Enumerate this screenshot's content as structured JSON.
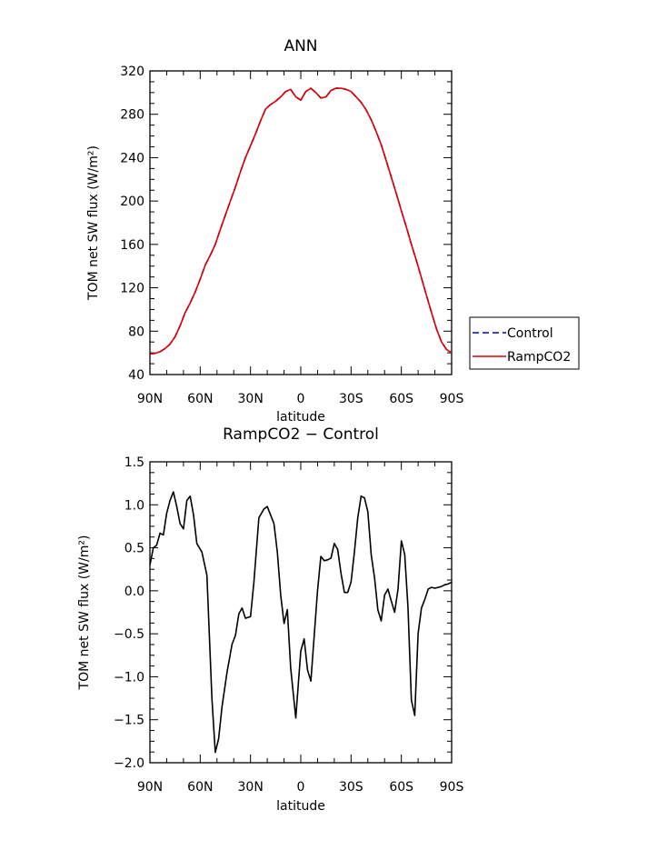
{
  "chart_data": [
    {
      "type": "line",
      "title": "ANN",
      "xlabel": "latitude",
      "ylabel": "TOM net SW flux (W/m²)",
      "x_tick_labels": [
        "90N",
        "60N",
        "30N",
        "0",
        "30S",
        "60S",
        "90S"
      ],
      "y_tick_labels": [
        "40",
        "80",
        "120",
        "160",
        "200",
        "240",
        "280",
        "320"
      ],
      "ylim": [
        40,
        320
      ],
      "x": [
        90,
        87,
        84,
        81,
        78,
        75,
        72,
        69,
        66,
        63,
        60,
        57,
        54,
        51,
        48,
        45,
        42,
        39,
        36,
        33,
        30,
        27,
        24,
        21,
        18,
        15,
        12,
        9,
        6,
        3,
        0,
        -3,
        -6,
        -9,
        -12,
        -15,
        -18,
        -21,
        -24,
        -27,
        -30,
        -33,
        -36,
        -39,
        -42,
        -45,
        -48,
        -51,
        -54,
        -57,
        -60,
        -63,
        -66,
        -69,
        -72,
        -75,
        -78,
        -81,
        -84,
        -87,
        -90
      ],
      "legend": {
        "placement": "right",
        "entries": [
          "Control",
          "RampCO2"
        ]
      },
      "series": [
        {
          "name": "Control",
          "color": "#0000cc",
          "style": "dashed",
          "values": [
            59,
            59.5,
            61,
            64,
            68,
            75,
            85,
            97,
            106,
            116,
            128,
            141,
            150,
            160,
            174,
            187,
            200,
            213,
            227,
            240,
            251,
            262,
            274,
            285,
            289,
            292,
            296,
            301,
            303,
            296,
            293,
            301,
            304,
            300,
            295,
            296,
            302,
            304,
            304,
            303,
            301,
            296,
            291,
            284,
            275,
            264,
            252,
            237,
            222,
            207,
            191,
            176,
            160,
            145,
            129,
            113,
            97,
            82,
            70,
            63,
            60
          ]
        },
        {
          "name": "RampCO2",
          "color": "#dd0000",
          "style": "solid",
          "values": [
            59,
            59.5,
            61,
            64,
            68,
            75,
            85,
            97,
            106,
            116,
            128,
            141,
            150,
            160,
            174,
            187,
            200,
            213,
            227,
            240,
            251,
            262,
            274,
            285,
            289,
            292,
            296,
            301,
            303,
            296,
            293,
            301,
            304,
            300,
            295,
            296,
            302,
            304,
            304,
            303,
            301,
            296,
            291,
            284,
            275,
            264,
            252,
            237,
            222,
            207,
            191,
            176,
            160,
            145,
            129,
            113,
            97,
            82,
            70,
            63,
            60
          ]
        }
      ]
    },
    {
      "type": "line",
      "title": "RampCO2 − Control",
      "xlabel": "latitude",
      "ylabel": "TOM net SW flux (W/m²)",
      "x_tick_labels": [
        "90N",
        "60N",
        "30N",
        "0",
        "30S",
        "60S",
        "90S"
      ],
      "y_tick_labels": [
        "−2.0",
        "−1.5",
        "−1.0",
        "−0.5",
        "0.0",
        "0.5",
        "1.0",
        "1.5"
      ],
      "ylim": [
        -2.0,
        1.5
      ],
      "x": [
        90,
        88,
        86,
        84,
        82,
        80,
        78,
        76,
        74,
        72,
        70,
        68,
        66,
        64,
        62,
        59,
        56,
        53,
        51,
        49,
        47,
        44,
        41,
        39,
        37,
        35,
        33,
        30,
        28,
        25,
        22,
        20,
        18,
        16,
        14,
        12,
        10,
        8,
        6,
        3,
        0,
        -2,
        -4,
        -6,
        -8,
        -10,
        -12,
        -14,
        -16,
        -18,
        -20,
        -22,
        -24,
        -26,
        -28,
        -30,
        -32,
        -34,
        -36,
        -38,
        -40,
        -42,
        -44,
        -46,
        -48,
        -50,
        -52,
        -54,
        -56,
        -58,
        -60,
        -62,
        -64,
        -66,
        -68,
        -70,
        -72,
        -74,
        -76,
        -78,
        -80,
        -82,
        -84,
        -86,
        -88,
        -90
      ],
      "series": [
        {
          "color": "#000000",
          "style": "solid",
          "values": [
            0.3,
            0.5,
            0.53,
            0.67,
            0.65,
            0.9,
            1.05,
            1.15,
            0.98,
            0.78,
            0.72,
            1.05,
            1.1,
            0.88,
            0.55,
            0.45,
            0.18,
            -1.25,
            -1.88,
            -1.72,
            -1.35,
            -0.95,
            -0.62,
            -0.52,
            -0.27,
            -0.2,
            -0.32,
            -0.3,
            0.1,
            0.85,
            0.95,
            0.98,
            0.88,
            0.78,
            0.45,
            -0.05,
            -0.38,
            -0.22,
            -0.9,
            -1.48,
            -0.7,
            -0.56,
            -0.92,
            -1.05,
            -0.52,
            0.0,
            0.4,
            0.35,
            0.36,
            0.38,
            0.55,
            0.48,
            0.2,
            -0.02,
            -0.02,
            0.1,
            0.45,
            0.85,
            1.1,
            1.08,
            0.92,
            0.42,
            0.15,
            -0.22,
            -0.35,
            -0.05,
            0.02,
            -0.12,
            -0.25,
            0.02,
            0.58,
            0.42,
            -0.2,
            -1.27,
            -1.45,
            -0.5,
            -0.2,
            -0.1,
            0.02,
            0.04,
            0.03,
            0.04,
            0.05,
            0.07,
            0.08,
            0.1
          ]
        }
      ]
    }
  ]
}
